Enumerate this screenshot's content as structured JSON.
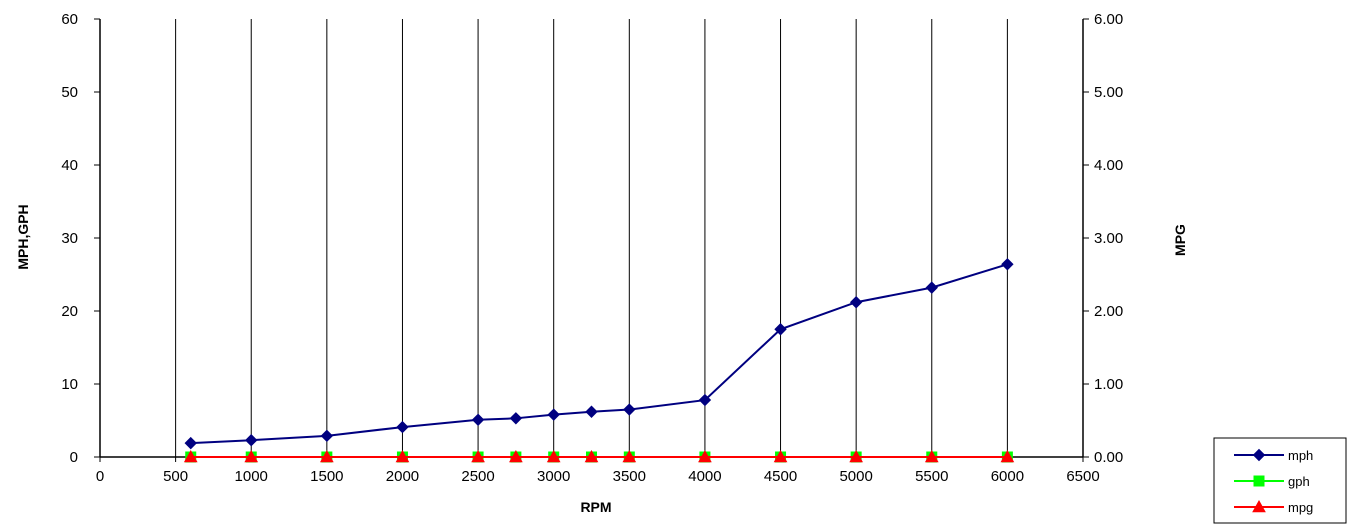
{
  "chart_data": {
    "type": "line",
    "xlabel": "RPM",
    "ylabel": "MPH,GPH",
    "y2label": "MPG",
    "xlim": [
      0,
      6500
    ],
    "ylim": [
      0,
      60
    ],
    "y2lim": [
      0,
      6
    ],
    "x_ticks": [
      "0",
      "500",
      "1000",
      "1500",
      "2000",
      "2500",
      "3000",
      "3500",
      "4000",
      "4500",
      "5000",
      "5500",
      "6000",
      "6500"
    ],
    "y_ticks": [
      "0",
      "10",
      "20",
      "30",
      "40",
      "50",
      "60"
    ],
    "y2_ticks": [
      "0.00",
      "1.00",
      "2.00",
      "3.00",
      "4.00",
      "5.00",
      "6.00"
    ],
    "grid": "vertical",
    "legend_position": "bottom-right",
    "x": [
      600,
      1000,
      1500,
      2000,
      2500,
      2750,
      3000,
      3250,
      3500,
      4000,
      4500,
      5000,
      5500,
      6000
    ],
    "series": [
      {
        "name": "mph",
        "color": "#000080",
        "marker": "diamond",
        "axis": "left",
        "values": [
          1.9,
          2.3,
          2.9,
          4.1,
          5.1,
          5.3,
          5.8,
          6.2,
          6.5,
          7.8,
          17.5,
          21.2,
          23.2,
          26.4
        ]
      },
      {
        "name": "gph",
        "color": "#00ff00",
        "marker": "square",
        "axis": "left",
        "values": [
          0,
          0,
          0,
          0,
          0,
          0,
          0,
          0,
          0,
          0,
          0,
          0,
          0,
          0
        ]
      },
      {
        "name": "mpg",
        "color": "#ff0000",
        "marker": "triangle",
        "axis": "right",
        "values": [
          0,
          0,
          0,
          0,
          0,
          0,
          0,
          0,
          0,
          0,
          0,
          0,
          0,
          0
        ]
      }
    ]
  }
}
